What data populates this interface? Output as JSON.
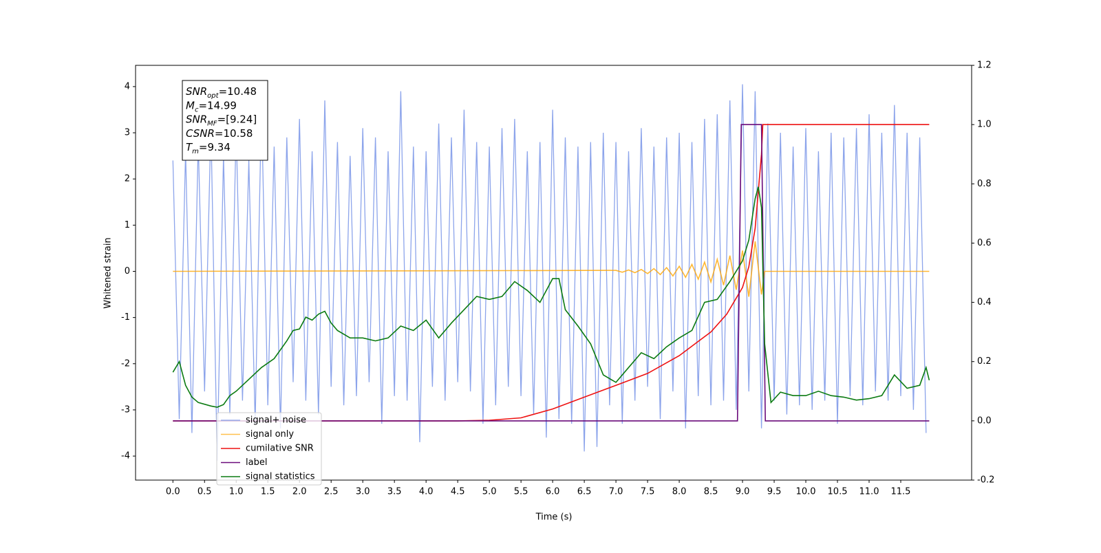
{
  "chart_data": {
    "type": "line",
    "xlabel": "Time (s)",
    "ylabel": "Whitened strain",
    "xlim": [
      -0.59,
      12.62
    ],
    "ylim": [
      -4.52,
      4.46
    ],
    "y2lim": [
      -0.2,
      1.2
    ],
    "xticks": [
      {
        "value": 0,
        "label": "0.0"
      },
      0.5,
      {
        "value": 1,
        "label": "1.0"
      },
      1.5,
      {
        "value": 2,
        "label": "2.0"
      },
      2.5,
      {
        "value": 3,
        "label": "3.0"
      },
      3.5,
      {
        "value": 4,
        "label": "4.0"
      },
      4.5,
      {
        "value": 5,
        "label": "5.0"
      },
      5.5,
      {
        "value": 6,
        "label": "6.0"
      },
      6.5,
      {
        "value": 7,
        "label": "7.0"
      },
      7.5,
      {
        "value": 8,
        "label": "8.0"
      },
      8.5,
      {
        "value": 9,
        "label": "9.0"
      },
      9.5,
      {
        "value": 10,
        "label": "10.0"
      },
      10.5,
      {
        "value": 11,
        "label": "11.0"
      },
      11.5
    ],
    "yticks": [
      -4,
      -3,
      -2,
      -1,
      0,
      1,
      2,
      3,
      4
    ],
    "y2ticks": [
      -0.2,
      {
        "value": 0,
        "label": "0.0"
      },
      0.2,
      0.4,
      0.6,
      0.8,
      {
        "value": 1,
        "label": "1.0"
      },
      1.2
    ],
    "legend": "lower left",
    "annotations": [
      [
        "SNR",
        "opt",
        "=10.48"
      ],
      [
        "M",
        "c",
        "=14.99"
      ],
      [
        "SNR",
        "MF",
        "=[9.24]"
      ],
      [
        "CSNR",
        "",
        "=10.58"
      ],
      [
        "T",
        "m",
        "=9.34"
      ]
    ],
    "series": [
      {
        "name": "signal+ noise",
        "color": "#6f8de6",
        "x": [
          0,
          0.1,
          0.2,
          0.3,
          0.4,
          0.5,
          0.6,
          0.7,
          0.8,
          0.9,
          1,
          1.1,
          1.2,
          1.3,
          1.4,
          1.5,
          1.6,
          1.7,
          1.8,
          1.9,
          2,
          2.1,
          2.2,
          2.3,
          2.4,
          2.5,
          2.6,
          2.7,
          2.8,
          2.9,
          3,
          3.1,
          3.2,
          3.3,
          3.4,
          3.5,
          3.6,
          3.7,
          3.8,
          3.9,
          4,
          4.1,
          4.2,
          4.3,
          4.4,
          4.5,
          4.6,
          4.7,
          4.8,
          4.9,
          5,
          5.1,
          5.2,
          5.3,
          5.4,
          5.5,
          5.6,
          5.7,
          5.8,
          5.9,
          6,
          6.1,
          6.2,
          6.3,
          6.4,
          6.5,
          6.6,
          6.7,
          6.8,
          6.9,
          7,
          7.1,
          7.2,
          7.3,
          7.4,
          7.5,
          7.6,
          7.7,
          7.8,
          7.9,
          8,
          8.1,
          8.2,
          8.3,
          8.4,
          8.5,
          8.6,
          8.7,
          8.8,
          8.9,
          9,
          9.1,
          9.2,
          9.3,
          9.4,
          9.5,
          9.6,
          9.7,
          9.8,
          9.9,
          10,
          10.1,
          10.2,
          10.3,
          10.4,
          10.5,
          10.6,
          10.7,
          10.8,
          10.9,
          11,
          11.1,
          11.2,
          11.3,
          11.4,
          11.5,
          11.6,
          11.7,
          11.8,
          11.9
        ],
        "values": [
          2.4,
          -3.2,
          2.6,
          -3.5,
          2.8,
          -2.6,
          3.2,
          -4.1,
          2.5,
          -3.1,
          3.1,
          -2.8,
          2.4,
          -3.3,
          3.6,
          -2.9,
          2.7,
          -3.4,
          2.9,
          -2.4,
          3.3,
          -2.8,
          2.6,
          -3.1,
          3.7,
          -2.5,
          2.8,
          -2.9,
          2.5,
          -2.7,
          3.1,
          -2.4,
          2.9,
          -3.3,
          2.6,
          -2.7,
          3.9,
          -2.8,
          2.7,
          -3.7,
          2.6,
          -2.5,
          3.2,
          -2.8,
          2.9,
          -2.4,
          3.5,
          -2.6,
          2.8,
          -3.3,
          2.7,
          -2.9,
          3.1,
          -2.5,
          3.3,
          -2.7,
          2.6,
          -3.1,
          2.8,
          -3.6,
          3.5,
          -3.2,
          2.9,
          -3.3,
          2.7,
          -3.9,
          2.8,
          -3.8,
          3.0,
          -2.9,
          2.8,
          -3.3,
          2.6,
          -2.8,
          3.1,
          -2.5,
          2.7,
          -3.2,
          2.9,
          -2.6,
          3.0,
          -3.4,
          2.8,
          -2.7,
          3.3,
          -2.9,
          3.4,
          -2.8,
          3.7,
          -3.0,
          4.05,
          -2.6,
          3.9,
          -3.4,
          3.2,
          -2.8,
          3.0,
          -3.1,
          2.7,
          -2.9,
          3.1,
          -3.0,
          2.6,
          -2.8,
          3.0,
          -3.3,
          2.9,
          -2.7,
          3.1,
          -2.9,
          3.4,
          -2.6,
          3.0,
          -2.8,
          3.6,
          -2.7,
          3.0,
          -3.0,
          2.9,
          -3.5
        ]
      },
      {
        "name": "signal only",
        "color": "#ffa500",
        "x": [
          0,
          7,
          7.1,
          7.2,
          7.3,
          7.4,
          7.5,
          7.6,
          7.7,
          7.8,
          7.9,
          8,
          8.1,
          8.2,
          8.3,
          8.4,
          8.5,
          8.6,
          8.7,
          8.8,
          8.9,
          9,
          9.1,
          9.2,
          9.3,
          9.35,
          11.95
        ],
        "values": [
          0,
          0.02,
          -0.02,
          0.03,
          -0.03,
          0.04,
          -0.05,
          0.06,
          -0.07,
          0.08,
          -0.1,
          0.11,
          -0.13,
          0.15,
          -0.17,
          0.2,
          -0.23,
          0.26,
          -0.3,
          0.34,
          -0.4,
          0.45,
          -0.55,
          0.65,
          -0.5,
          0,
          0
        ]
      },
      {
        "name": "cumilative SNR",
        "color": "#ee1111",
        "axis": "y2",
        "x": [
          0,
          4.5,
          5,
          5.5,
          6,
          6.5,
          7,
          7.5,
          8,
          8.5,
          8.75,
          9,
          9.1,
          9.2,
          9.3,
          9.32,
          11.95
        ],
        "values": [
          0,
          0,
          0.002,
          0.01,
          0.04,
          0.08,
          0.12,
          0.16,
          0.22,
          0.3,
          0.36,
          0.45,
          0.52,
          0.65,
          0.9,
          1,
          1
        ]
      },
      {
        "name": "label",
        "color": "#6a0a7a",
        "axis": "y2",
        "x": [
          0,
          8.92,
          8.98,
          9.3,
          9.36,
          11.95
        ],
        "values": [
          0,
          0,
          1,
          1,
          0,
          0
        ]
      },
      {
        "name": "signal statistics",
        "color": "#0a7a10",
        "axis": "y2",
        "x": [
          0,
          0.1,
          0.2,
          0.3,
          0.4,
          0.6,
          0.7,
          0.8,
          0.9,
          1,
          1.2,
          1.4,
          1.6,
          1.8,
          1.9,
          2,
          2.1,
          2.2,
          2.3,
          2.4,
          2.5,
          2.6,
          2.8,
          3,
          3.2,
          3.4,
          3.6,
          3.8,
          4,
          4.2,
          4.4,
          4.6,
          4.8,
          5,
          5.2,
          5.4,
          5.6,
          5.8,
          6,
          6.1,
          6.2,
          6.4,
          6.6,
          6.8,
          7,
          7.2,
          7.4,
          7.6,
          7.8,
          8,
          8.2,
          8.4,
          8.6,
          8.8,
          9,
          9.1,
          9.2,
          9.25,
          9.3,
          9.35,
          9.45,
          9.6,
          9.8,
          10,
          10.2,
          10.4,
          10.6,
          10.8,
          11,
          11.2,
          11.4,
          11.6,
          11.8,
          11.9,
          11.95
        ],
        "values": [
          0.164,
          0.2,
          0.12,
          0.08,
          0.062,
          0.05,
          0.046,
          0.055,
          0.085,
          0.1,
          0.14,
          0.18,
          0.21,
          0.27,
          0.305,
          0.31,
          0.35,
          0.34,
          0.36,
          0.37,
          0.33,
          0.305,
          0.28,
          0.28,
          0.27,
          0.28,
          0.32,
          0.305,
          0.34,
          0.28,
          0.33,
          0.375,
          0.42,
          0.41,
          0.42,
          0.47,
          0.44,
          0.4,
          0.48,
          0.48,
          0.375,
          0.32,
          0.26,
          0.155,
          0.13,
          0.18,
          0.23,
          0.21,
          0.25,
          0.28,
          0.305,
          0.4,
          0.41,
          0.47,
          0.54,
          0.61,
          0.75,
          0.79,
          0.72,
          0.26,
          0.062,
          0.097,
          0.085,
          0.085,
          0.1,
          0.085,
          0.08,
          0.07,
          0.075,
          0.085,
          0.155,
          0.11,
          0.12,
          0.18,
          0.137
        ]
      }
    ]
  }
}
